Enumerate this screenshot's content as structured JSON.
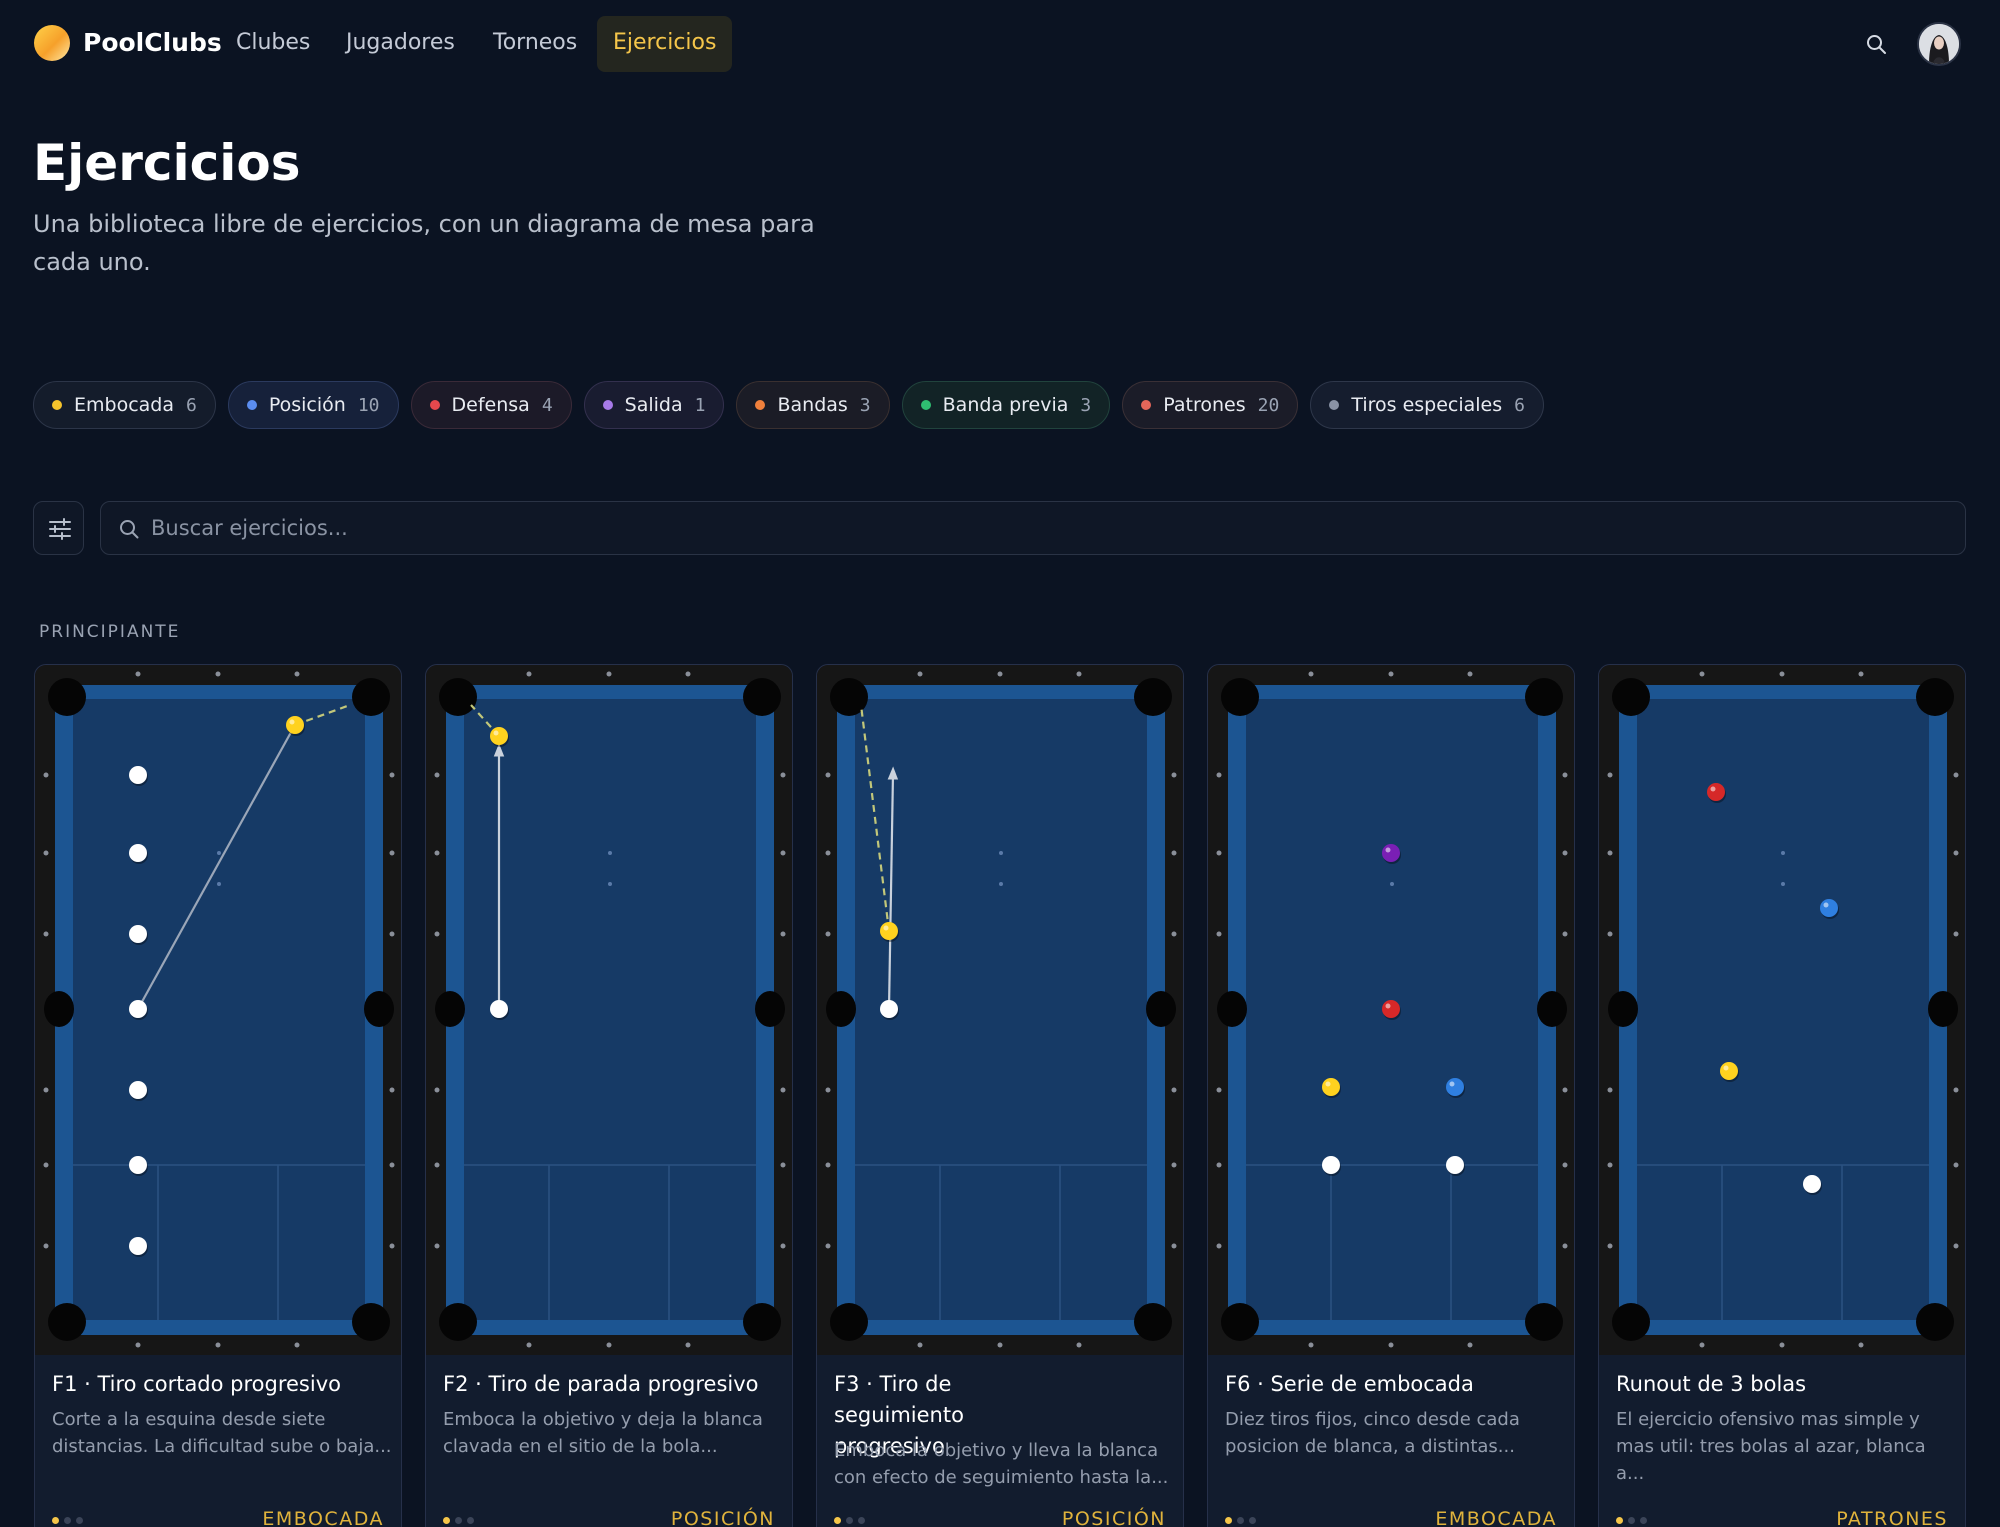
{
  "app": {
    "brand": "PoolClubs"
  },
  "nav": [
    {
      "label": "Clubes"
    },
    {
      "label": "Jugadores"
    },
    {
      "label": "Torneos"
    },
    {
      "label": "Ejercicios",
      "active": true
    }
  ],
  "header": {
    "search_icon": "search-icon",
    "avatar": "user-avatar"
  },
  "page": {
    "title": "Ejercicios",
    "subtitle": "Una biblioteca libre de ejercicios, con un diagrama de mesa para cada uno."
  },
  "categories": [
    {
      "label": "Embocada",
      "count": "6",
      "color": "#f5c32c"
    },
    {
      "label": "Posición",
      "count": "10",
      "color": "#5b8def"
    },
    {
      "label": "Defensa",
      "count": "4",
      "color": "#e5484d"
    },
    {
      "label": "Salida",
      "count": "1",
      "color": "#a77ae8"
    },
    {
      "label": "Bandas",
      "count": "3",
      "color": "#f0803c"
    },
    {
      "label": "Banda previa",
      "count": "3",
      "color": "#2fbf71"
    },
    {
      "label": "Patrones",
      "count": "20",
      "color": "#e5665a"
    },
    {
      "label": "Tiros especiales",
      "count": "6",
      "color": "#8a93a6"
    }
  ],
  "search": {
    "placeholder": "Buscar ejercicios..."
  },
  "section": {
    "label": "PRINCIPIANTE"
  },
  "cards": [
    {
      "title": "F1 · Tiro cortado progresivo",
      "description": "Corte a la esquina desde siete distancias. La dificultad sube o baja...",
      "tag": "EMBOCADA",
      "level": 1
    },
    {
      "title": "F2 · Tiro de parada progresivo",
      "description": "Emboca la objetivo y deja la blanca clavada en el sitio de la bola...",
      "tag": "POSICIÓN",
      "level": 1
    },
    {
      "title": "F3 · Tiro de seguimiento progresivo",
      "description": "Emboca la objetivo y lleva la blanca con efecto de seguimiento hasta la...",
      "tag": "POSICIÓN",
      "level": 1
    },
    {
      "title": "F6 · Serie de embocada",
      "description": "Diez tiros fijos, cinco desde cada posicion de blanca, a distintas...",
      "tag": "EMBOCADA",
      "level": 1
    },
    {
      "title": "Runout de 3 bolas",
      "description": "El ejercicio ofensivo mas simple y mas util: tres bolas al azar, blanca a...",
      "tag": "PATRONES",
      "level": 1
    }
  ],
  "colors": {
    "accent": "#f5c64a",
    "background": "#0b1322",
    "felt": "#163a66",
    "rail": "#1c5a9a"
  }
}
